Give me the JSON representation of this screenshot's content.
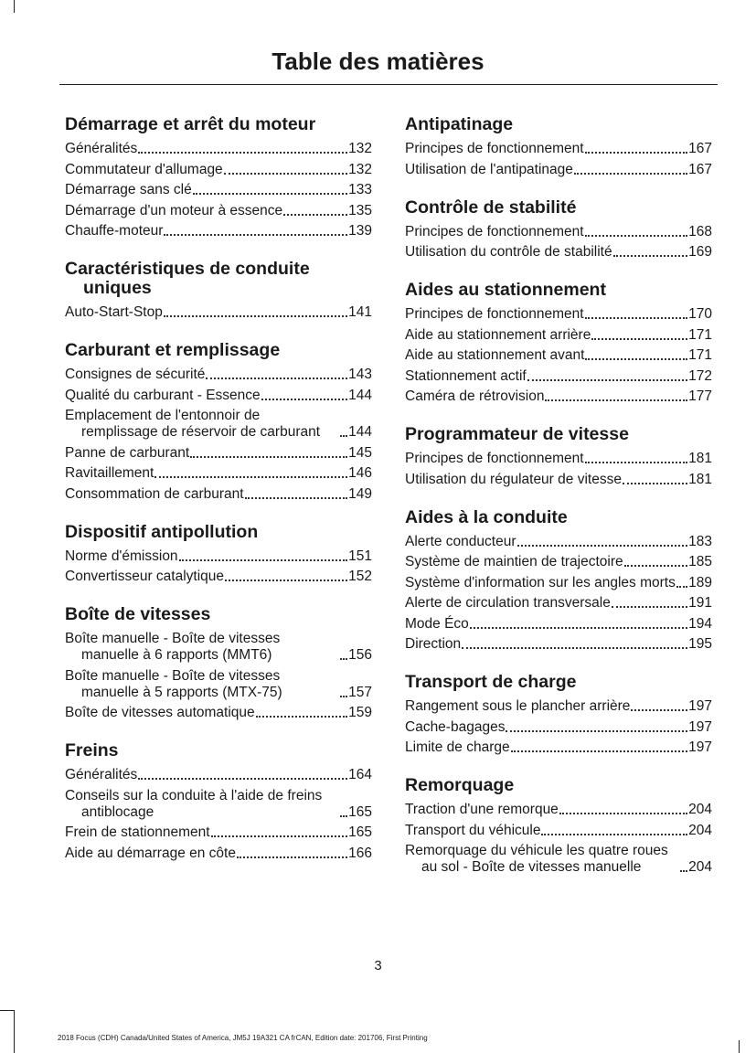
{
  "header": {
    "title": "Table des matières"
  },
  "columns": [
    [
      {
        "heading": "Démarrage et arrêt du moteur",
        "entries": [
          {
            "text": "Généralités",
            "page": "132"
          },
          {
            "text": "Commutateur d'allumage",
            "page": "132"
          },
          {
            "text": "Démarrage sans clé",
            "page": "133"
          },
          {
            "text": "Démarrage d'un moteur à essence",
            "page": "135"
          },
          {
            "text": "Chauffe-moteur",
            "page": "139"
          }
        ]
      },
      {
        "heading": "Caractéristiques de conduite uniques",
        "entries": [
          {
            "text": "Auto-Start-Stop",
            "page": "141"
          }
        ]
      },
      {
        "heading": "Carburant et remplissage",
        "entries": [
          {
            "text": "Consignes de sécurité",
            "page": "143"
          },
          {
            "text": "Qualité du carburant - Essence",
            "page": "144"
          },
          {
            "text": "Emplacement de l'entonnoir de remplissage de réservoir de carburant",
            "page": "144"
          },
          {
            "text": "Panne de carburant",
            "page": "145"
          },
          {
            "text": "Ravitaillement",
            "page": "146"
          },
          {
            "text": "Consommation de carburant",
            "page": "149"
          }
        ]
      },
      {
        "heading": "Dispositif antipollution",
        "entries": [
          {
            "text": "Norme d'émission",
            "page": "151"
          },
          {
            "text": "Convertisseur catalytique",
            "page": "152"
          }
        ]
      },
      {
        "heading": "Boîte de vitesses",
        "entries": [
          {
            "text": "Boîte manuelle - Boîte de vitesses manuelle à 6 rapports (MMT6)",
            "page": "156"
          },
          {
            "text": "Boîte manuelle - Boîte de vitesses manuelle à 5 rapports (MTX-75)",
            "page": "157"
          },
          {
            "text": "Boîte de vitesses automatique",
            "page": "159"
          }
        ]
      },
      {
        "heading": "Freins",
        "entries": [
          {
            "text": "Généralités",
            "page": "164"
          },
          {
            "text": "Conseils sur la conduite à l'aide de freins antiblocage",
            "page": "165"
          },
          {
            "text": "Frein de stationnement",
            "page": "165"
          },
          {
            "text": "Aide au démarrage en côte",
            "page": "166"
          }
        ]
      }
    ],
    [
      {
        "heading": "Antipatinage",
        "entries": [
          {
            "text": "Principes de fonctionnement",
            "page": "167"
          },
          {
            "text": "Utilisation de l'antipatinage",
            "page": "167"
          }
        ]
      },
      {
        "heading": "Contrôle de stabilité",
        "entries": [
          {
            "text": "Principes de fonctionnement",
            "page": "168"
          },
          {
            "text": "Utilisation du contrôle de stabilité",
            "page": "169"
          }
        ]
      },
      {
        "heading": "Aides au stationnement",
        "entries": [
          {
            "text": "Principes de fonctionnement",
            "page": "170"
          },
          {
            "text": "Aide au stationnement arrière",
            "page": "171"
          },
          {
            "text": "Aide au stationnement avant",
            "page": "171"
          },
          {
            "text": "Stationnement actif",
            "page": "172"
          },
          {
            "text": "Caméra de rétrovision",
            "page": "177"
          }
        ]
      },
      {
        "heading": "Programmateur de vitesse",
        "entries": [
          {
            "text": "Principes de fonctionnement",
            "page": "181"
          },
          {
            "text": "Utilisation du régulateur de vitesse",
            "page": "181"
          }
        ]
      },
      {
        "heading": "Aides à la conduite",
        "entries": [
          {
            "text": "Alerte conducteur",
            "page": "183"
          },
          {
            "text": "Système de maintien de trajectoire",
            "page": "185"
          },
          {
            "text": "Système d'information sur les angles morts",
            "page": "189"
          },
          {
            "text": "Alerte de circulation transversale",
            "page": "191"
          },
          {
            "text": "Mode Éco",
            "page": "194"
          },
          {
            "text": "Direction",
            "page": "195"
          }
        ]
      },
      {
        "heading": "Transport de charge",
        "entries": [
          {
            "text": "Rangement sous le plancher arrière",
            "page": "197"
          },
          {
            "text": "Cache-bagages",
            "page": "197"
          },
          {
            "text": "Limite de charge",
            "page": "197"
          }
        ]
      },
      {
        "heading": "Remorquage",
        "entries": [
          {
            "text": "Traction d'une remorque",
            "page": "204"
          },
          {
            "text": "Transport du véhicule",
            "page": "204"
          },
          {
            "text": "Remorquage du véhicule les quatre roues au sol - Boîte de vitesses manuelle",
            "page": "204"
          }
        ]
      }
    ]
  ],
  "footer": {
    "page_number": "3",
    "note": "2018 Focus (CDH) Canada/United States of America, JM5J 19A321 CA frCAN, Edition date: 201706, First Printing"
  }
}
